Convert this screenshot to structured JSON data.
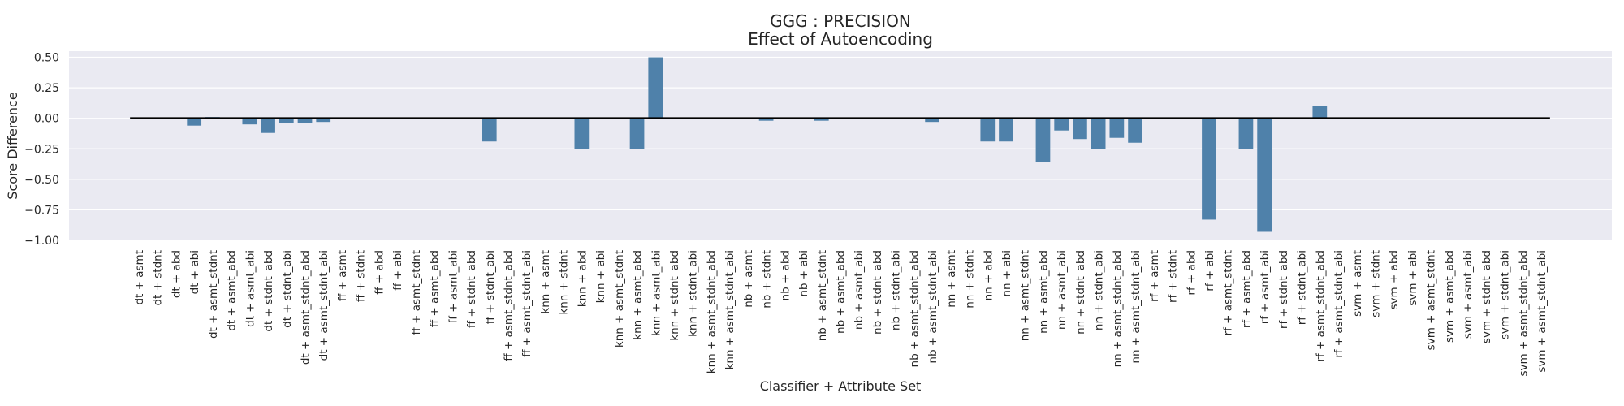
{
  "chart_data": {
    "type": "bar",
    "title": "GGG : PRECISION",
    "subtitle": "Effect of Autoencoding",
    "xlabel": "Classifier + Attribute Set",
    "ylabel": "Score Difference",
    "ylim": [
      -1.0,
      0.55
    ],
    "yticks": [
      "0.50",
      "0.25",
      "0.00",
      "−0.25",
      "−0.50",
      "−0.75",
      "−1.00"
    ],
    "ytick_values": [
      0.5,
      0.25,
      0.0,
      -0.25,
      -0.5,
      -0.75,
      -1.0
    ],
    "grid": true,
    "baseline": 0,
    "colors": {
      "bar": "#4f81aa",
      "background": "#eaeaf2",
      "grid": "#ffffff",
      "baseline": "#000000"
    },
    "categories": [
      "dt + asmt",
      "dt + stdnt",
      "dt + abd",
      "dt + abi",
      "dt + asmt_stdnt",
      "dt + asmt_abd",
      "dt + asmt_abi",
      "dt + stdnt_abd",
      "dt + stdnt_abi",
      "dt + asmt_stdnt_abd",
      "dt + asmt_stdnt_abi",
      "ff + asmt",
      "ff + stdnt",
      "ff + abd",
      "ff + abi",
      "ff + asmt_stdnt",
      "ff + asmt_abd",
      "ff + asmt_abi",
      "ff + stdnt_abd",
      "ff + stdnt_abi",
      "ff + asmt_stdnt_abd",
      "ff + asmt_stdnt_abi",
      "knn + asmt",
      "knn + stdnt",
      "knn + abd",
      "knn + abi",
      "knn + asmt_stdnt",
      "knn + asmt_abd",
      "knn + asmt_abi",
      "knn + stdnt_abd",
      "knn + stdnt_abi",
      "knn + asmt_stdnt_abd",
      "knn + asmt_stdnt_abi",
      "nb + asmt",
      "nb + stdnt",
      "nb + abd",
      "nb + abi",
      "nb + asmt_stdnt",
      "nb + asmt_abd",
      "nb + asmt_abi",
      "nb + stdnt_abd",
      "nb + stdnt_abi",
      "nb + asmt_stdnt_abd",
      "nb + asmt_stdnt_abi",
      "nn + asmt",
      "nn + stdnt",
      "nn + abd",
      "nn + abi",
      "nn + asmt_stdnt",
      "nn + asmt_abd",
      "nn + asmt_abi",
      "nn + stdnt_abd",
      "nn + stdnt_abi",
      "nn + asmt_stdnt_abd",
      "nn + asmt_stdnt_abi",
      "rf + asmt",
      "rf + stdnt",
      "rf + abd",
      "rf + abi",
      "rf + asmt_stdnt",
      "rf + asmt_abd",
      "rf + asmt_abi",
      "rf + stdnt_abd",
      "rf + stdnt_abi",
      "rf + asmt_stdnt_abd",
      "rf + asmt_stdnt_abi",
      "svm + asmt",
      "svm + stdnt",
      "svm + abd",
      "svm + abi",
      "svm + asmt_stdnt",
      "svm + asmt_abd",
      "svm + asmt_abi",
      "svm + stdnt_abd",
      "svm + stdnt_abi",
      "svm + asmt_stdnt_abd",
      "svm + asmt_stdnt_abi"
    ],
    "values": [
      0,
      0,
      0,
      -0.06,
      0.01,
      0,
      -0.05,
      -0.12,
      -0.04,
      -0.04,
      -0.03,
      0,
      0,
      0,
      0,
      0,
      0,
      0,
      0,
      -0.19,
      0,
      0,
      0,
      0,
      -0.25,
      0,
      0,
      -0.25,
      0.5,
      0,
      0,
      0,
      0,
      0,
      -0.02,
      0,
      0,
      -0.02,
      0,
      0,
      0,
      0,
      0,
      -0.03,
      0,
      0,
      -0.19,
      -0.19,
      0,
      -0.36,
      -0.1,
      -0.17,
      -0.25,
      -0.16,
      -0.2,
      0,
      0,
      0,
      -0.83,
      0,
      -0.25,
      -0.93,
      0,
      0,
      0.1,
      0,
      0,
      0,
      0,
      0,
      0,
      0,
      0,
      0,
      0,
      0,
      0
    ]
  }
}
